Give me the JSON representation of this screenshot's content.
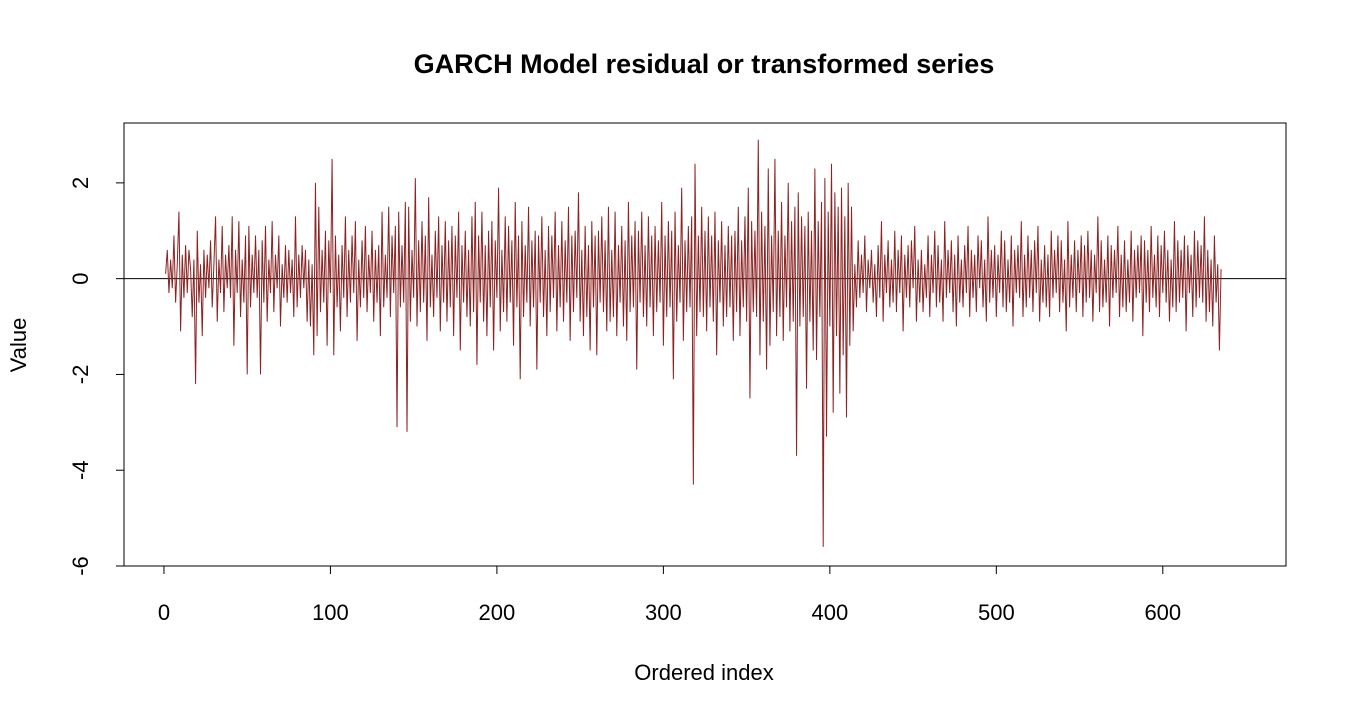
{
  "chart_data": {
    "type": "line",
    "title": "GARCH Model residual or transformed series",
    "xlabel": "Ordered index",
    "ylabel": "Value",
    "xlim": [
      -24,
      674
    ],
    "ylim": [
      -6,
      3.25
    ],
    "x_ticks": [
      0,
      100,
      200,
      300,
      400,
      500,
      600
    ],
    "x_tick_labels": [
      "0",
      "100",
      "200",
      "300",
      "400",
      "500",
      "600"
    ],
    "y_ticks": [
      -6,
      -4,
      -2,
      0,
      2
    ],
    "y_tick_labels": [
      "-6",
      "-4",
      "-2",
      "0",
      "2"
    ],
    "reference_line_y": 0,
    "grid": false,
    "legend": "none",
    "series": [
      {
        "color": "#8B2323",
        "n_points": 648,
        "x_start": 1,
        "values": [
          0.1,
          0.6,
          -0.3,
          0.4,
          -0.2,
          0.9,
          -0.5,
          0.3,
          1.4,
          -1.1,
          0.5,
          -0.4,
          0.7,
          -0.3,
          0.6,
          0.2,
          -0.8,
          0.4,
          -2.2,
          1.0,
          -0.5,
          0.3,
          -1.2,
          0.6,
          -0.4,
          0.5,
          -0.2,
          0.8,
          -0.6,
          0.3,
          1.3,
          -0.9,
          0.4,
          -0.3,
          1.1,
          -0.7,
          0.5,
          -0.2,
          0.7,
          -0.4,
          1.3,
          -1.4,
          0.6,
          -0.3,
          1.2,
          -0.8,
          0.4,
          -0.5,
          0.9,
          -2.0,
          1.1,
          -0.6,
          0.5,
          -0.3,
          0.9,
          -0.4,
          0.6,
          -2.0,
          0.8,
          -0.5,
          1.1,
          -0.9,
          0.4,
          -0.3,
          1.2,
          -0.7,
          0.5,
          -0.2,
          0.9,
          -1.0,
          0.3,
          -0.4,
          0.7,
          -0.5,
          0.6,
          -0.3,
          0.4,
          -0.8,
          1.3,
          -0.6,
          0.5,
          -0.4,
          0.7,
          -0.2,
          0.6,
          -0.9,
          0.4,
          -1.0,
          0.3,
          -1.6,
          2.0,
          -1.2,
          1.5,
          -0.7,
          0.6,
          -0.5,
          1.0,
          -1.4,
          0.8,
          -0.3,
          2.5,
          -1.6,
          0.9,
          -0.6,
          0.5,
          -1.1,
          0.7,
          -0.4,
          1.3,
          -0.8,
          0.6,
          -0.5,
          0.9,
          -0.3,
          1.2,
          -1.3,
          0.4,
          -0.6,
          0.8,
          -0.4,
          1.1,
          -0.7,
          0.5,
          -0.3,
          1.0,
          -0.9,
          0.6,
          -0.5,
          0.7,
          -1.2,
          1.4,
          -0.6,
          0.5,
          -0.4,
          1.5,
          -0.8,
          0.9,
          -0.3,
          1.1,
          -3.1,
          1.4,
          -0.6,
          0.7,
          -0.5,
          1.6,
          -3.2,
          1.5,
          -0.9,
          0.6,
          -0.4,
          2.1,
          -1.0,
          0.8,
          -0.7,
          1.2,
          -0.5,
          0.9,
          -1.3,
          1.7,
          -0.6,
          0.5,
          -0.8,
          1.0,
          -0.4,
          1.3,
          -1.1,
          0.7,
          -0.5,
          1.2,
          -0.9,
          0.8,
          -0.6,
          1.1,
          -1.2,
          0.9,
          -0.4,
          1.4,
          -1.5,
          0.7,
          -0.5,
          1.0,
          -0.8,
          0.6,
          -1.0,
          1.3,
          -0.7,
          1.6,
          -1.8,
          0.9,
          -0.5,
          1.4,
          -0.9,
          0.7,
          -1.2,
          1.0,
          -0.6,
          1.2,
          -1.5,
          0.8,
          -0.4,
          1.9,
          -1.1,
          0.6,
          -0.7,
          1.3,
          -0.9,
          1.1,
          -0.5,
          0.8,
          -1.4,
          1.6,
          -0.6,
          0.9,
          -2.1,
          1.2,
          -0.8,
          0.7,
          -0.5,
          1.5,
          -1.0,
          0.8,
          -0.6,
          1.0,
          -1.9,
          0.9,
          -0.5,
          1.3,
          -0.8,
          0.6,
          -1.2,
          1.1,
          -0.7,
          0.9,
          -0.4,
          1.4,
          -1.1,
          0.7,
          -0.6,
          1.2,
          -0.9,
          0.8,
          -0.5,
          1.5,
          -1.3,
          0.9,
          -0.7,
          1.0,
          -0.4,
          1.8,
          -0.9,
          0.6,
          -1.2,
          1.1,
          -0.8,
          0.7,
          -1.5,
          1.2,
          -0.6,
          0.9,
          -1.6,
          1.0,
          -0.5,
          1.3,
          -0.7,
          0.8,
          -1.1,
          1.5,
          -0.9,
          0.6,
          -0.8,
          1.4,
          -1.2,
          0.7,
          -0.5,
          1.1,
          -1.0,
          0.8,
          -1.3,
          1.6,
          -0.7,
          0.9,
          -0.6,
          1.2,
          -1.9,
          1.0,
          -0.5,
          1.4,
          -0.8,
          0.7,
          -1.0,
          1.3,
          -0.6,
          0.9,
          -1.2,
          1.1,
          -0.7,
          0.8,
          -0.5,
          1.6,
          -1.4,
          0.9,
          -0.8,
          1.2,
          -0.6,
          1.0,
          -2.1,
          1.4,
          -0.9,
          0.7,
          -0.5,
          1.9,
          -1.3,
          0.8,
          -0.7,
          1.1,
          -0.6,
          1.3,
          -4.3,
          2.4,
          -1.2,
          0.9,
          -0.7,
          1.5,
          -0.8,
          1.0,
          -1.1,
          1.3,
          -0.6,
          0.9,
          -0.9,
          1.4,
          -1.6,
          0.8,
          -0.5,
          1.2,
          -1.0,
          0.7,
          -0.8,
          1.1,
          -0.6,
          0.9,
          -1.3,
          1.0,
          -0.7,
          1.5,
          -1.2,
          0.8,
          -0.6,
          1.3,
          -0.9,
          1.9,
          -2.5,
          1.2,
          -0.7,
          1.0,
          -0.8,
          2.9,
          -1.6,
          1.4,
          -0.9,
          1.1,
          -1.9,
          2.3,
          -1.4,
          0.9,
          -0.7,
          2.5,
          -1.2,
          1.0,
          -0.8,
          1.6,
          -1.3,
          0.9,
          -0.6,
          2.0,
          -1.1,
          1.2,
          -0.9,
          1.5,
          -3.7,
          1.8,
          -1.0,
          1.3,
          -0.8,
          1.1,
          -2.3,
          1.4,
          -0.9,
          1.0,
          -1.5,
          2.3,
          -1.7,
          1.2,
          -0.8,
          1.6,
          -5.6,
          2.1,
          -3.3,
          1.4,
          -1.0,
          2.4,
          -2.8,
          1.8,
          -1.2,
          1.5,
          -2.4,
          1.9,
          -1.6,
          1.3,
          -2.9,
          2.0,
          -1.4,
          1.5,
          -1.1,
          0.3,
          -0.6,
          0.8,
          -0.4,
          0.5,
          -0.3,
          0.9,
          -0.7,
          0.4,
          -0.2,
          0.6,
          -0.5,
          0.3,
          -0.8,
          0.7,
          -0.4,
          1.2,
          -0.9,
          0.5,
          -0.3,
          0.8,
          -0.6,
          0.4,
          -0.5,
          1.0,
          -0.7,
          0.6,
          -0.3,
          0.9,
          -1.1,
          0.5,
          -0.4,
          0.7,
          -0.6,
          0.8,
          -0.2,
          1.1,
          -0.9,
          0.4,
          -0.5,
          0.6,
          -0.7,
          0.3,
          -0.4,
          0.9,
          -0.8,
          0.5,
          -0.3,
          1.0,
          -0.6,
          0.7,
          -0.5,
          0.4,
          -0.9,
          1.2,
          -0.4,
          0.6,
          -0.3,
          0.8,
          -0.7,
          0.5,
          -1.0,
          0.9,
          -0.5,
          0.4,
          -0.6,
          0.7,
          -0.3,
          1.1,
          -0.8,
          0.6,
          -0.4,
          0.5,
          -0.7,
          0.9,
          -0.2,
          0.8,
          -0.6,
          0.4,
          -0.9,
          1.3,
          -0.5,
          0.6,
          -0.4,
          0.7,
          -0.8,
          0.5,
          -0.3,
          1.0,
          -0.6,
          0.8,
          -0.7,
          0.4,
          -0.5,
          0.9,
          -1.0,
          0.6,
          -0.3,
          0.7,
          -0.4,
          1.2,
          -0.8,
          0.5,
          -0.6,
          0.9,
          -0.4,
          0.6,
          -0.7,
          0.8,
          -0.3,
          1.1,
          -0.9,
          0.4,
          -0.5,
          0.7,
          -0.6,
          0.5,
          -0.8,
          1.0,
          -0.4,
          0.6,
          -0.3,
          0.9,
          -0.7,
          0.8,
          -0.5,
          0.4,
          -1.1,
          1.2,
          -0.6,
          0.5,
          -0.4,
          0.8,
          -0.7,
          0.6,
          -0.3,
          0.9,
          -0.8,
          0.7,
          -0.5,
          1.0,
          -0.4,
          0.6,
          -0.9,
          0.5,
          -0.3,
          1.3,
          -0.7,
          0.8,
          -0.6,
          0.4,
          -0.5,
          0.9,
          -1.0,
          0.7,
          -0.4,
          0.6,
          -0.3,
          1.1,
          -0.8,
          0.5,
          -0.6,
          0.8,
          -0.7,
          0.4,
          -0.5,
          1.0,
          -0.9,
          0.6,
          -0.4,
          0.7,
          -0.3,
          0.9,
          -1.2,
          0.8,
          -0.5,
          0.6,
          -0.7,
          1.1,
          -0.4,
          0.5,
          -0.6,
          0.9,
          -0.8,
          0.7,
          -0.3,
          1.0,
          -0.5,
          0.6,
          -0.9,
          0.4,
          -0.6,
          1.2,
          -0.7,
          0.8,
          -0.5,
          0.6,
          -0.4,
          0.9,
          -1.1,
          0.7,
          -0.3,
          0.5,
          -0.8,
          1.0,
          -0.6,
          0.8,
          -0.4,
          0.7,
          -0.5,
          1.3,
          -0.9,
          0.6,
          -0.7,
          0.4,
          -1.0,
          0.9,
          -0.5,
          0.3,
          -1.5,
          0.2
        ]
      }
    ]
  }
}
